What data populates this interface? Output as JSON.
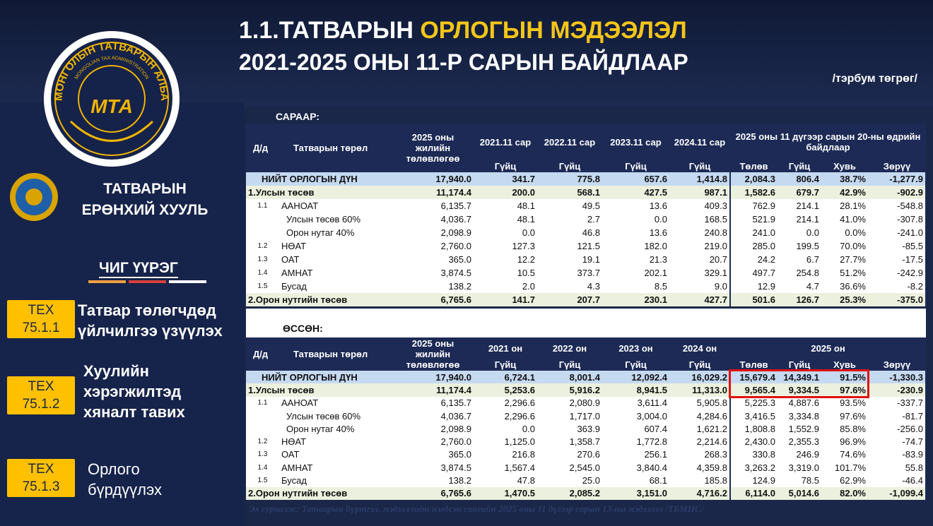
{
  "header": {
    "title": "1.1.ТАТВАРЫН",
    "title_highlight": "ОРЛОГЫН МЭДЭЭЛЭЛ",
    "subtitle": "2021-2025 ОНЫ 11-Р САРЫН БАЙДЛААР",
    "unit": "/тэрбум төгрөг/"
  },
  "logo": {
    "ring_text": "МОНГОЛЫН ТАТВАРЫН АЛБА",
    "inner_text": "MONGOLIAN TAX ADMINISTRATION",
    "abbr": "МТА"
  },
  "sidebar": {
    "org_line1": "ТАТВАРЫН",
    "org_line2": "ЕРӨНХИЙ ХУУЛЬ",
    "section": "ЧИГ ҮҮРЭГ",
    "items": [
      {
        "code": "ТЕХ 75.1.1",
        "text": "Татвар төлөгчдөд үйлчилгээ үзүүлэх"
      },
      {
        "code": "ТЕХ 75.1.2",
        "text": "Хуулийн хэрэгжилтэд хяналт тавих"
      },
      {
        "code": "ТЕХ 75.1.3",
        "text": "Орлого бүрдүүлэх"
      }
    ]
  },
  "tables": {
    "monthly": {
      "label": "САРААР:",
      "header_top": [
        "Д/д",
        "Татварын төрөл",
        "2025 оны жилийн төлөвлөгөө",
        "2021.11 сар",
        "2022.11 сар",
        "2023.11 сар",
        "2024.11 сар",
        "2025 оны 11 дүгээр сарын 20-ны өдрийн байдлаар"
      ],
      "header_sub": [
        "Гүйц",
        "Гүйц",
        "Гүйц",
        "Гүйц",
        "Төлөв",
        "Гүйц",
        "Хувь",
        "Зөрүү"
      ],
      "rows": [
        {
          "name": "НИЙТ ОРЛОГЫН ДҮН",
          "values": [
            "17,940.0",
            "341.7",
            "775.8",
            "657.6",
            "1,414.8",
            "2,084.3",
            "806.4",
            "38.7%",
            "-1,277.9"
          ]
        },
        {
          "name": "1.Улсын төсөв",
          "values": [
            "11,174.4",
            "200.0",
            "568.1",
            "427.5",
            "987.1",
            "1,582.6",
            "679.7",
            "42.9%",
            "-902.9"
          ]
        },
        {
          "num": "1.1",
          "name": "ААНОАТ",
          "values": [
            "6,135.7",
            "48.1",
            "49.5",
            "13.6",
            "409.3",
            "762.9",
            "214.1",
            "28.1%",
            "-548.8"
          ]
        },
        {
          "name": "Улсын төсөв 60%",
          "values": [
            "4,036.7",
            "48.1",
            "2.7",
            "0.0",
            "168.5",
            "521.9",
            "214.1",
            "41.0%",
            "-307.8"
          ]
        },
        {
          "name": "Орон нутаг 40%",
          "values": [
            "2,098.9",
            "0.0",
            "46.8",
            "13.6",
            "240.8",
            "241.0",
            "0.0",
            "0.0%",
            "-241.0"
          ]
        },
        {
          "num": "1.2",
          "name": "НӨАТ",
          "values": [
            "2,760.0",
            "127.3",
            "121.5",
            "182.0",
            "219.0",
            "285.0",
            "199.5",
            "70.0%",
            "-85.5"
          ]
        },
        {
          "num": "1.3",
          "name": "ОАТ",
          "values": [
            "365.0",
            "12.2",
            "19.1",
            "21.3",
            "20.7",
            "24.2",
            "6.7",
            "27.7%",
            "-17.5"
          ]
        },
        {
          "num": "1.4",
          "name": "АМНАТ",
          "values": [
            "3,874.5",
            "10.5",
            "373.7",
            "202.1",
            "329.1",
            "497.7",
            "254.8",
            "51.2%",
            "-242.9"
          ]
        },
        {
          "num": "1.5",
          "name": "Бусад",
          "values": [
            "138.2",
            "2.0",
            "4.3",
            "8.5",
            "9.0",
            "12.9",
            "4.7",
            "36.6%",
            "-8.2"
          ]
        },
        {
          "name": "2.Орон нутгийн төсөв",
          "values": [
            "6,765.6",
            "141.7",
            "207.7",
            "230.1",
            "427.7",
            "501.6",
            "126.7",
            "25.3%",
            "-375.0"
          ]
        }
      ]
    },
    "growth": {
      "label": "ӨССӨН:",
      "header_top": [
        "Д/д",
        "Татварын төрөл",
        "2025 оны жилийн төлөвлөгөө",
        "2021 он",
        "2022 он",
        "2023 он",
        "2024 он",
        "2025 он"
      ],
      "header_sub": [
        "Гүйц",
        "Гүйц",
        "Гүйц",
        "Гүйц",
        "Төлөв",
        "Гүйц",
        "Хувь",
        "Зөрүү"
      ],
      "rows": [
        {
          "name": "НИЙТ ОРЛОГЫН ДҮН",
          "values": [
            "17,940.0",
            "6,724.1",
            "8,001.4",
            "12,092.4",
            "16,029.2",
            "15,679.4",
            "14,349.1",
            "91.5%",
            "-1,330.3"
          ]
        },
        {
          "name": "1.Улсын төсөв",
          "values": [
            "11,174.4",
            "5,253.6",
            "5,916.2",
            "8,941.5",
            "11,313.0",
            "9,565.4",
            "9,334.5",
            "97.6%",
            "-230.9"
          ]
        },
        {
          "num": "1.1",
          "name": "ААНОАТ",
          "values": [
            "6,135.7",
            "2,296.6",
            "2,080.9",
            "3,611.4",
            "5,905.8",
            "5,225.3",
            "4,887.6",
            "93.5%",
            "-337.7"
          ]
        },
        {
          "name": "Улсын төсөв 60%",
          "values": [
            "4,036.7",
            "2,296.6",
            "1,717.0",
            "3,004.0",
            "4,284.6",
            "3,416.5",
            "3,334.8",
            "97.6%",
            "-81.7"
          ]
        },
        {
          "name": "Орон нутаг 40%",
          "values": [
            "2,098.9",
            "0.0",
            "363.9",
            "607.4",
            "1,621.2",
            "1,808.8",
            "1,552.9",
            "85.8%",
            "-256.0"
          ]
        },
        {
          "num": "1.2",
          "name": "НӨАТ",
          "values": [
            "2,760.0",
            "1,125.0",
            "1,358.7",
            "1,772.8",
            "2,214.6",
            "2,430.0",
            "2,355.3",
            "96.9%",
            "-74.7"
          ]
        },
        {
          "num": "1.3",
          "name": "ОАТ",
          "values": [
            "365.0",
            "216.8",
            "270.6",
            "256.1",
            "268.3",
            "330.8",
            "246.9",
            "74.6%",
            "-83.9"
          ]
        },
        {
          "num": "1.4",
          "name": "АМНАТ",
          "values": [
            "3,874.5",
            "1,567.4",
            "2,545.0",
            "3,840.4",
            "4,359.8",
            "3,263.2",
            "3,319.0",
            "101.7%",
            "55.8"
          ]
        },
        {
          "num": "1.5",
          "name": "Бусад",
          "values": [
            "138.2",
            "47.8",
            "25.0",
            "68.1",
            "185.8",
            "124.9",
            "78.5",
            "62.9%",
            "-46.4"
          ]
        },
        {
          "name": "2.Орон нутгийн төсөв",
          "values": [
            "6,765.6",
            "1,470.5",
            "2,085.2",
            "3,151.0",
            "4,716.2",
            "6,114.0",
            "5,014.6",
            "82.0%",
            "-1,099.4"
          ]
        }
      ]
    }
  },
  "footer": {
    "source": "Эх сурвалж: Татварын бүртгэл, мэдээллийн нэгдсэн сангийн 2025 оны 11 дүгээр сарын 13-ны мэдээлэл /ТБМНС/"
  }
}
